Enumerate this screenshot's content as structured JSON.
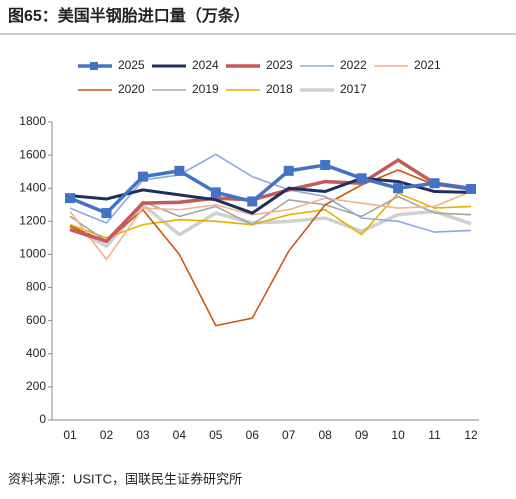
{
  "chart_data": {
    "type": "line",
    "title": "图65：美国半钢胎进口量（万条）",
    "source": "资料来源：USITC，国联民生证券研究所",
    "categories": [
      "01",
      "02",
      "03",
      "04",
      "05",
      "06",
      "07",
      "08",
      "09",
      "10",
      "11",
      "12"
    ],
    "ylim": [
      0,
      1800
    ],
    "yticks": [
      0,
      200,
      400,
      600,
      800,
      1000,
      1200,
      1400,
      1600,
      1800
    ],
    "grid": false,
    "series": [
      {
        "name": "2025",
        "color": "#4472c4",
        "marker": "square",
        "values": [
          1340,
          1250,
          1470,
          1505,
          1375,
          1320,
          1505,
          1540,
          1460,
          1400,
          1430,
          1395
        ]
      },
      {
        "name": "2024",
        "color": "#1f2f5e",
        "values": [
          1355,
          1335,
          1390,
          1360,
          1330,
          1250,
          1400,
          1380,
          1460,
          1440,
          1380,
          1375
        ]
      },
      {
        "name": "2023",
        "color": "#c55a5a",
        "values": [
          1150,
          1080,
          1310,
          1315,
          1340,
          1330,
          1390,
          1440,
          1430,
          1570,
          1430,
          1400
        ]
      },
      {
        "name": "2022",
        "color": "#8fa8dc",
        "values": [
          1280,
          1190,
          1450,
          1480,
          1605,
          1470,
          1390,
          1350,
          1220,
          1200,
          1135,
          1145
        ]
      },
      {
        "name": "2021",
        "color": "#f4b183",
        "values": [
          1260,
          970,
          1280,
          1270,
          1300,
          1240,
          1270,
          1340,
          1310,
          1280,
          1290,
          1380
        ]
      },
      {
        "name": "2020",
        "color": "#c55a11",
        "values": [
          1170,
          1080,
          1270,
          1000,
          570,
          615,
          1020,
          1300,
          1420,
          1510,
          1420,
          1390
        ]
      },
      {
        "name": "2019",
        "color": "#a5a5a5",
        "values": [
          1230,
          1080,
          1320,
          1230,
          1290,
          1180,
          1330,
          1300,
          1230,
          1350,
          1250,
          1240
        ]
      },
      {
        "name": "2018",
        "color": "#e6b000",
        "values": [
          1180,
          1100,
          1180,
          1210,
          1200,
          1180,
          1240,
          1270,
          1120,
          1370,
          1280,
          1290
        ]
      },
      {
        "name": "2017",
        "color": "#d0d0d0",
        "values": [
          1170,
          1050,
          1300,
          1120,
          1250,
          1190,
          1200,
          1220,
          1140,
          1240,
          1260,
          1185
        ]
      }
    ]
  }
}
